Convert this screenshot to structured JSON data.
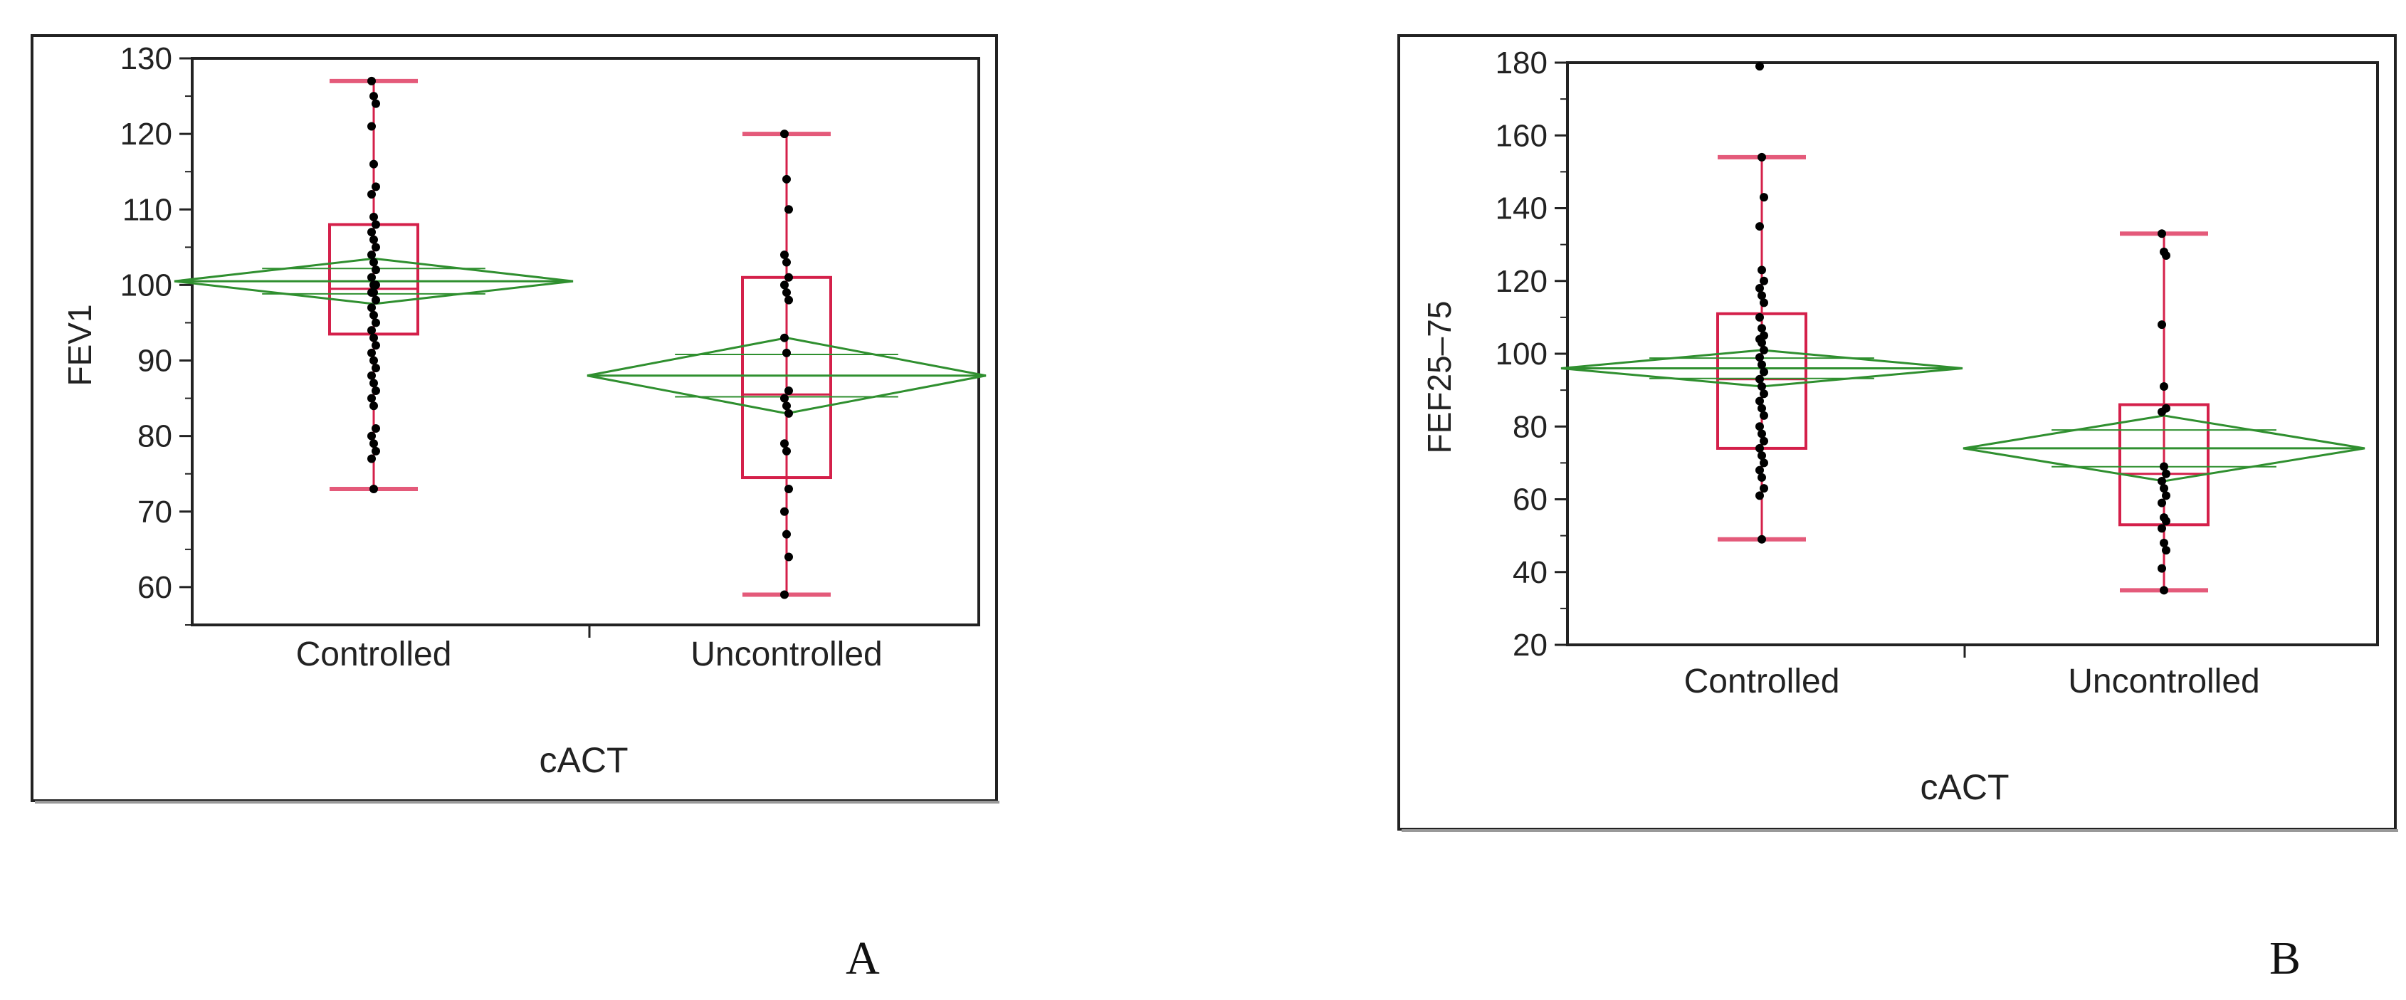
{
  "panel_labels": [
    "A",
    "B"
  ],
  "colors": {
    "box": "#d4204a",
    "whisker_cap": "#e45a7a",
    "diamond": "#2f8f2f",
    "point": "#000000",
    "frame": "#222222"
  },
  "chart_data": [
    {
      "type": "box",
      "title": "",
      "xlabel": "cACT",
      "ylabel": "FEV1",
      "ylim": [
        55,
        130
      ],
      "yticks": [
        60,
        70,
        80,
        90,
        100,
        110,
        120,
        130
      ],
      "categories": [
        "Controlled",
        "Uncontrolled"
      ],
      "boxes": [
        {
          "min": 73,
          "q1": 93.5,
          "median": 99.5,
          "q3": 108,
          "max": 127,
          "mean": 100.5,
          "ci_low": 97.5,
          "ci_high": 103.5
        },
        {
          "min": 59,
          "q1": 74.5,
          "median": 85.5,
          "q3": 101,
          "max": 120,
          "mean": 88,
          "ci_low": 83,
          "ci_high": 93
        }
      ],
      "points": [
        [
          127,
          125,
          124,
          121,
          116,
          113,
          112,
          109,
          108,
          107,
          106,
          105,
          104,
          103,
          102,
          101,
          100,
          100,
          99,
          99,
          98,
          97,
          96,
          95,
          94,
          93,
          92,
          91,
          90,
          89,
          88,
          87,
          86,
          85,
          84,
          81,
          80,
          79,
          78,
          77,
          73
        ],
        [
          120,
          114,
          110,
          104,
          103,
          101,
          100,
          99,
          98,
          93,
          91,
          86,
          85,
          84,
          83,
          79,
          78,
          73,
          70,
          67,
          64,
          59
        ]
      ]
    },
    {
      "type": "box",
      "title": "",
      "xlabel": "cACT",
      "ylabel": "FEF25–75",
      "ylim": [
        20,
        180
      ],
      "yticks": [
        20,
        40,
        60,
        80,
        100,
        120,
        140,
        160,
        180
      ],
      "categories": [
        "Controlled",
        "Uncontrolled"
      ],
      "boxes": [
        {
          "min": 49,
          "q1": 74,
          "median": 93,
          "q3": 111,
          "max": 154,
          "mean": 96,
          "ci_low": 91,
          "ci_high": 101
        },
        {
          "min": 35,
          "q1": 53,
          "median": 67,
          "q3": 86,
          "max": 133,
          "mean": 74,
          "ci_low": 65,
          "ci_high": 83
        }
      ],
      "points": [
        [
          179,
          154,
          143,
          135,
          123,
          120,
          118,
          116,
          114,
          110,
          107,
          105,
          104,
          103,
          101,
          99,
          97,
          95,
          93,
          91,
          89,
          87,
          85,
          83,
          80,
          78,
          76,
          74,
          72,
          70,
          68,
          66,
          63,
          61,
          49
        ],
        [
          133,
          128,
          127,
          108,
          91,
          85,
          84,
          69,
          67,
          65,
          63,
          61,
          59,
          55,
          54,
          52,
          48,
          46,
          41,
          35
        ]
      ]
    }
  ]
}
